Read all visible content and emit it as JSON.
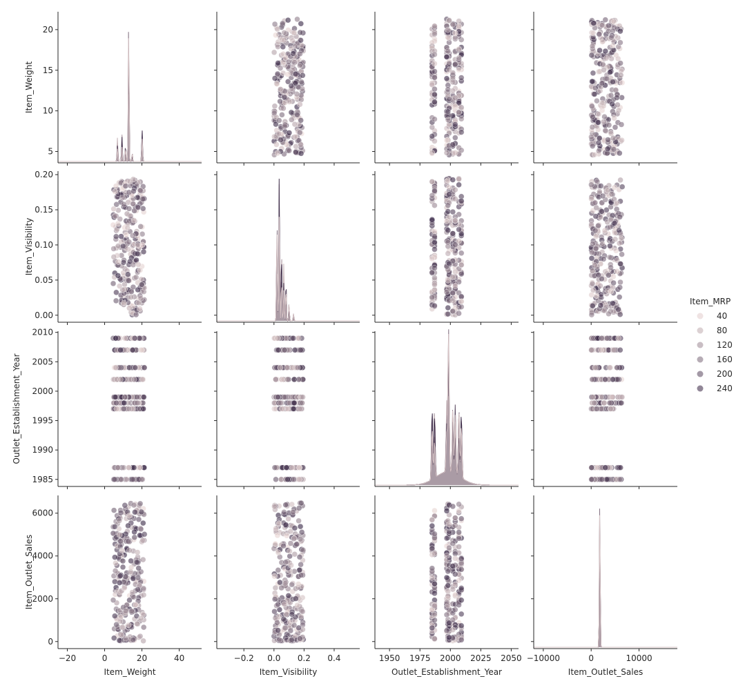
{
  "chart_data": {
    "type": "scatter",
    "variables": [
      "Item_Weight",
      "Item_Visibility",
      "Outlet_Establishment_Year",
      "Item_Outlet_Sales"
    ],
    "hue": "Item_MRP",
    "axes": {
      "Item_Weight": {
        "xlim": [
          -25,
          52
        ],
        "xticks": [
          -20,
          0,
          20,
          40
        ],
        "xtick_labels": [
          "−20",
          "0",
          "20",
          "40"
        ],
        "ylim": [
          3.6,
          22.2
        ],
        "yticks": [
          5,
          10,
          15,
          20
        ],
        "ytick_labels": [
          "5",
          "10",
          "15",
          "20"
        ],
        "range": [
          4.55,
          21.35
        ]
      },
      "Item_Visibility": {
        "xlim": [
          -0.38,
          0.57
        ],
        "xticks": [
          -0.2,
          0,
          0.2,
          0.4
        ],
        "xtick_labels": [
          "−0.2",
          "0.0",
          "0.2",
          "0.4"
        ],
        "ylim": [
          -0.01,
          0.205
        ],
        "yticks": [
          0,
          0.05,
          0.1,
          0.15,
          0.2
        ],
        "ytick_labels": [
          "0.00",
          "0.05",
          "0.10",
          "0.15",
          "0.20"
        ],
        "range": [
          0,
          0.195
        ]
      },
      "Outlet_Establishment_Year": {
        "xlim": [
          1938,
          2056
        ],
        "xticks": [
          1950,
          1975,
          2000,
          2025,
          2050
        ],
        "xtick_labels": [
          "1950",
          "1975",
          "2000",
          "2025",
          "2050"
        ],
        "ylim": [
          1983.8,
          2010.2
        ],
        "yticks": [
          1985,
          1990,
          1995,
          2000,
          2005,
          2010
        ],
        "ytick_labels": [
          "1985",
          "1990",
          "1995",
          "2000",
          "2005",
          "2010"
        ],
        "levels": [
          1985,
          1987,
          1997,
          1998,
          1999,
          2002,
          2004,
          2007,
          2009
        ]
      },
      "Item_Outlet_Sales": {
        "xlim": [
          -12000,
          18000
        ],
        "xticks": [
          -10000,
          0,
          10000
        ],
        "xtick_labels": [
          "−10000",
          "0",
          "10000"
        ],
        "ylim": [
          -330,
          6830
        ],
        "yticks": [
          0,
          2000,
          4000,
          6000
        ],
        "ytick_labels": [
          "0",
          "2000",
          "4000",
          "6000"
        ],
        "range": [
          30,
          6500
        ]
      }
    },
    "legend": {
      "title": "Item_MRP",
      "entries": [
        "40",
        "80",
        "120",
        "160",
        "200",
        "240"
      ],
      "placement": "center-right"
    },
    "hue_range": [
      30,
      270
    ],
    "grid": false
  },
  "colors": {
    "hue_low": "#ecd9d6",
    "hue_high": "#2f1e3e",
    "spine": "#262626",
    "background": "#ffffff"
  }
}
